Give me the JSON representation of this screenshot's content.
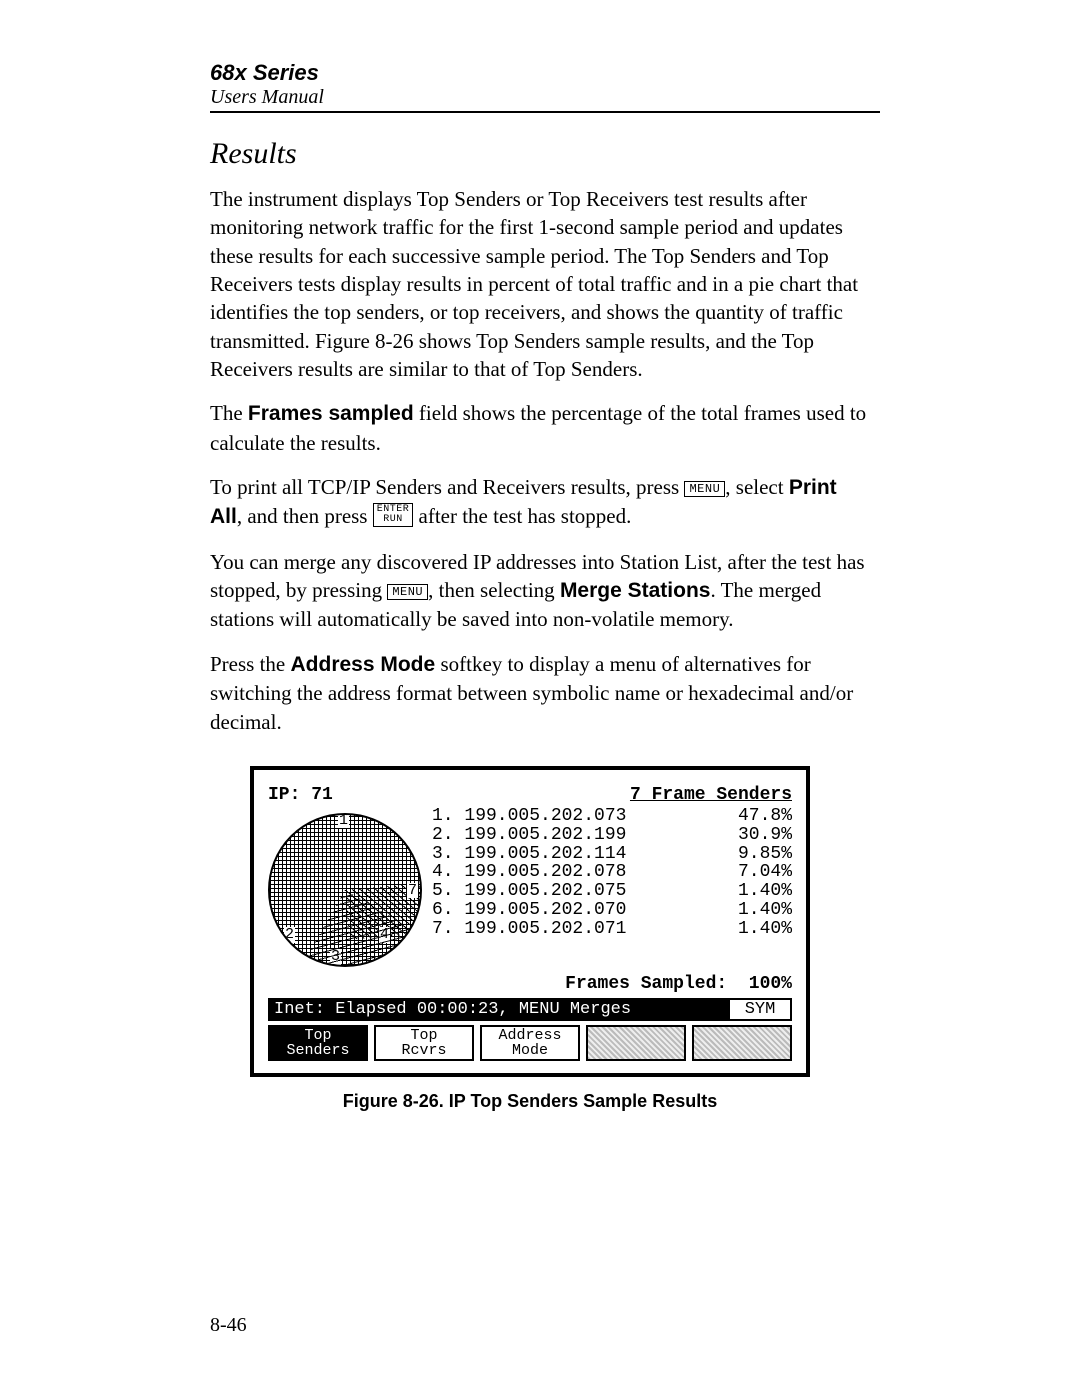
{
  "header": {
    "series": "68x Series",
    "manual": "Users Manual"
  },
  "section_title": "Results",
  "para1": "The instrument displays Top Senders or Top Receivers test results after monitoring network traffic for the first 1-second sample period and updates these results for each successive sample period. The Top Senders and Top Receivers tests display results in percent of total traffic and in a pie chart that identifies the top senders, or top receivers, and shows the quantity of traffic transmitted. Figure 8-26 shows Top Senders sample results, and the Top Receivers results are similar to that of Top Senders.",
  "para2_pre": "The ",
  "para2_bold": "Frames sampled",
  "para2_post": " field shows the percentage of the total frames used to calculate the results.",
  "para3_a": "To print all TCP/IP Senders and Receivers results, press ",
  "key_menu": "MENU",
  "para3_b": ", select ",
  "para3_bold": "Print All",
  "para3_c": ", and then press ",
  "key_enter_top": "ENTER",
  "key_enter_bot": "RUN",
  "para3_d": " after the test has stopped.",
  "para4_a": "You can merge any discovered IP addresses into Station List, after the test has stopped, by pressing ",
  "para4_b": ", then selecting ",
  "para4_bold": "Merge Stations",
  "para4_c": ". The merged stations will automatically be saved into non-volatile memory.",
  "para5_a": "Press the ",
  "para5_bold": "Address Mode",
  "para5_b": " softkey to display a menu of alternatives for switching the address format between symbolic name or hexadecimal and/or decimal.",
  "screen": {
    "ip_label": "IP:",
    "ip_value": "71",
    "title_right": "7  Frame  Senders",
    "rows": [
      {
        "n": "1.",
        "addr": "199.005.202.073",
        "pct": "47.8%"
      },
      {
        "n": "2.",
        "addr": "199.005.202.199",
        "pct": "30.9%"
      },
      {
        "n": "3.",
        "addr": "199.005.202.114",
        "pct": "9.85%"
      },
      {
        "n": "4.",
        "addr": "199.005.202.078",
        "pct": "7.04%"
      },
      {
        "n": "5.",
        "addr": "199.005.202.075",
        "pct": "1.40%"
      },
      {
        "n": "6.",
        "addr": "199.005.202.070",
        "pct": "1.40%"
      },
      {
        "n": "7.",
        "addr": "199.005.202.071",
        "pct": "1.40%"
      }
    ],
    "sampled_label": "Frames  Sampled:",
    "sampled_value": "100%",
    "status_main": "Inet: Elapsed 00:00:23, MENU Merges",
    "status_sym": "SYM",
    "softkeys": [
      {
        "line1": "Top",
        "line2": "Senders",
        "active": true
      },
      {
        "line1": "Top",
        "line2": "Rcvrs",
        "active": false
      },
      {
        "line1": "Address",
        "line2": "Mode",
        "active": false
      },
      {
        "line1": "",
        "line2": "",
        "shaded": true
      },
      {
        "line1": "",
        "line2": "",
        "shaded": true
      }
    ],
    "pie_labels": {
      "one": "1",
      "two": "2",
      "three": "3",
      "four": "4",
      "seven": "7"
    }
  },
  "figure_caption": "Figure 8-26.  IP Top Senders Sample Results",
  "page_number": "8-46"
}
